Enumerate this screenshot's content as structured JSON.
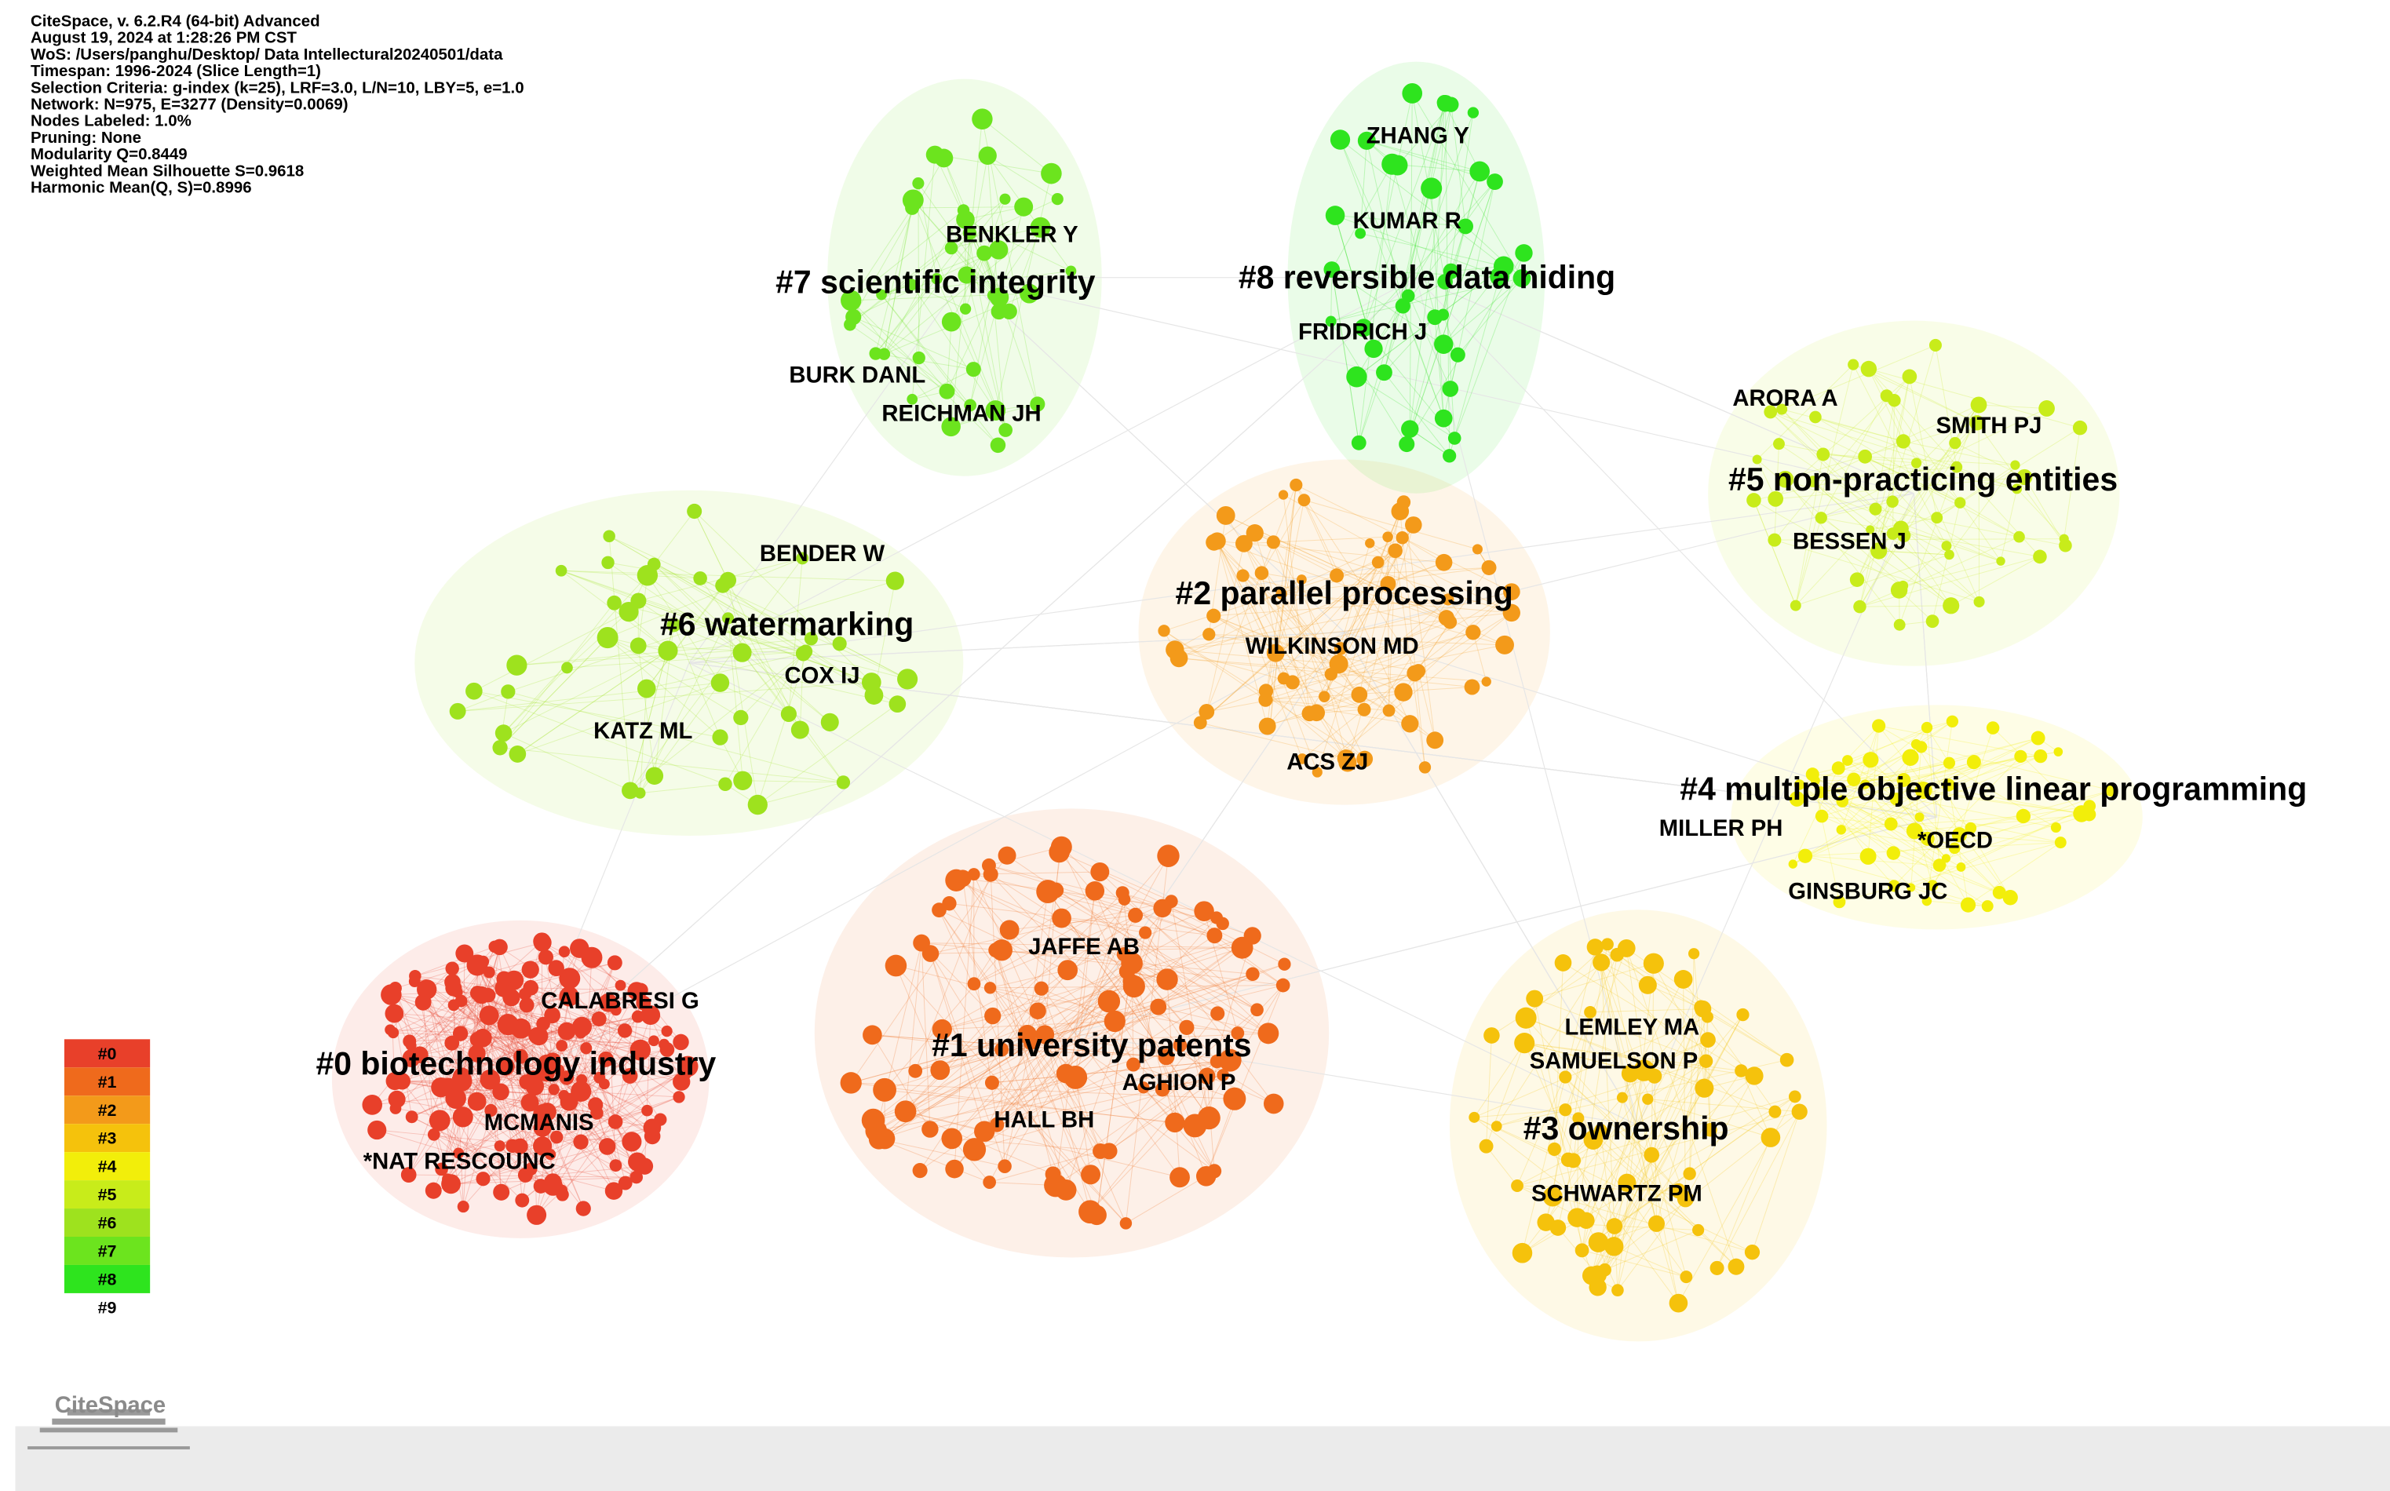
{
  "header": {
    "lines": [
      "CiteSpace, v. 6.2.R4 (64-bit) Advanced",
      "August 19, 2024 at 1:28:26 PM CST",
      "WoS: /Users/panghu/Desktop/ Data Intellectural20240501/data",
      "Timespan: 1996-2024 (Slice Length=1)",
      "Selection Criteria: g-index (k=25), LRF=3.0, L/N=10, LBY=5, e=1.0",
      "Network: N=975, E=3277 (Density=0.0069)",
      "Nodes Labeled: 1.0%",
      "Pruning: None",
      "Modularity Q=0.8449",
      "Weighted Mean Silhouette S=0.9618",
      "Harmonic Mean(Q, S)=0.8996"
    ]
  },
  "clusters": [
    {
      "label": "#0 biotechnology industry",
      "color": "#e8402a",
      "nodes": [
        "CALABRESI G",
        "MCMANIS",
        "*NAT RESCOUNC"
      ]
    },
    {
      "label": "#1 university patents",
      "color": "#ef6a1c",
      "nodes": [
        "JAFFE AB",
        "AGHION P",
        "HALL BH"
      ]
    },
    {
      "label": "#2 parallel processing",
      "color": "#f39a1a",
      "nodes": [
        "WILKINSON MD",
        "ACS ZJ"
      ]
    },
    {
      "label": "#3 ownership",
      "color": "#f5c20c",
      "nodes": [
        "LEMLEY MA",
        "SAMUELSON P",
        "SCHWARTZ PM"
      ]
    },
    {
      "label": "#4 multiple objective linear programming",
      "color": "#f2ee0a",
      "nodes": [
        "MILLER PH",
        "*OECD",
        "GINSBURG JC"
      ]
    },
    {
      "label": "#5 non-practicing entities",
      "color": "#c8ec1a",
      "nodes": [
        "ARORA A",
        "SMITH PJ",
        "BESSEN J"
      ]
    },
    {
      "label": "#6 watermarking",
      "color": "#9ee21e",
      "nodes": [
        "BENDER W",
        "COX IJ",
        "KATZ ML"
      ]
    },
    {
      "label": "#7 scientific integrity",
      "color": "#6ce41e",
      "nodes": [
        "BENKLER Y",
        "BURK DANL",
        "REICHMAN JH"
      ]
    },
    {
      "label": "#8 reversible data hiding",
      "color": "#2ee41e",
      "nodes": [
        "ZHANG Y",
        "KUMAR R",
        "FRIDRICH J"
      ]
    }
  ],
  "legend": [
    "#0",
    "#1",
    "#2",
    "#3",
    "#4",
    "#5",
    "#6",
    "#7",
    "#8",
    "#9"
  ],
  "logo": "CiteSpace"
}
